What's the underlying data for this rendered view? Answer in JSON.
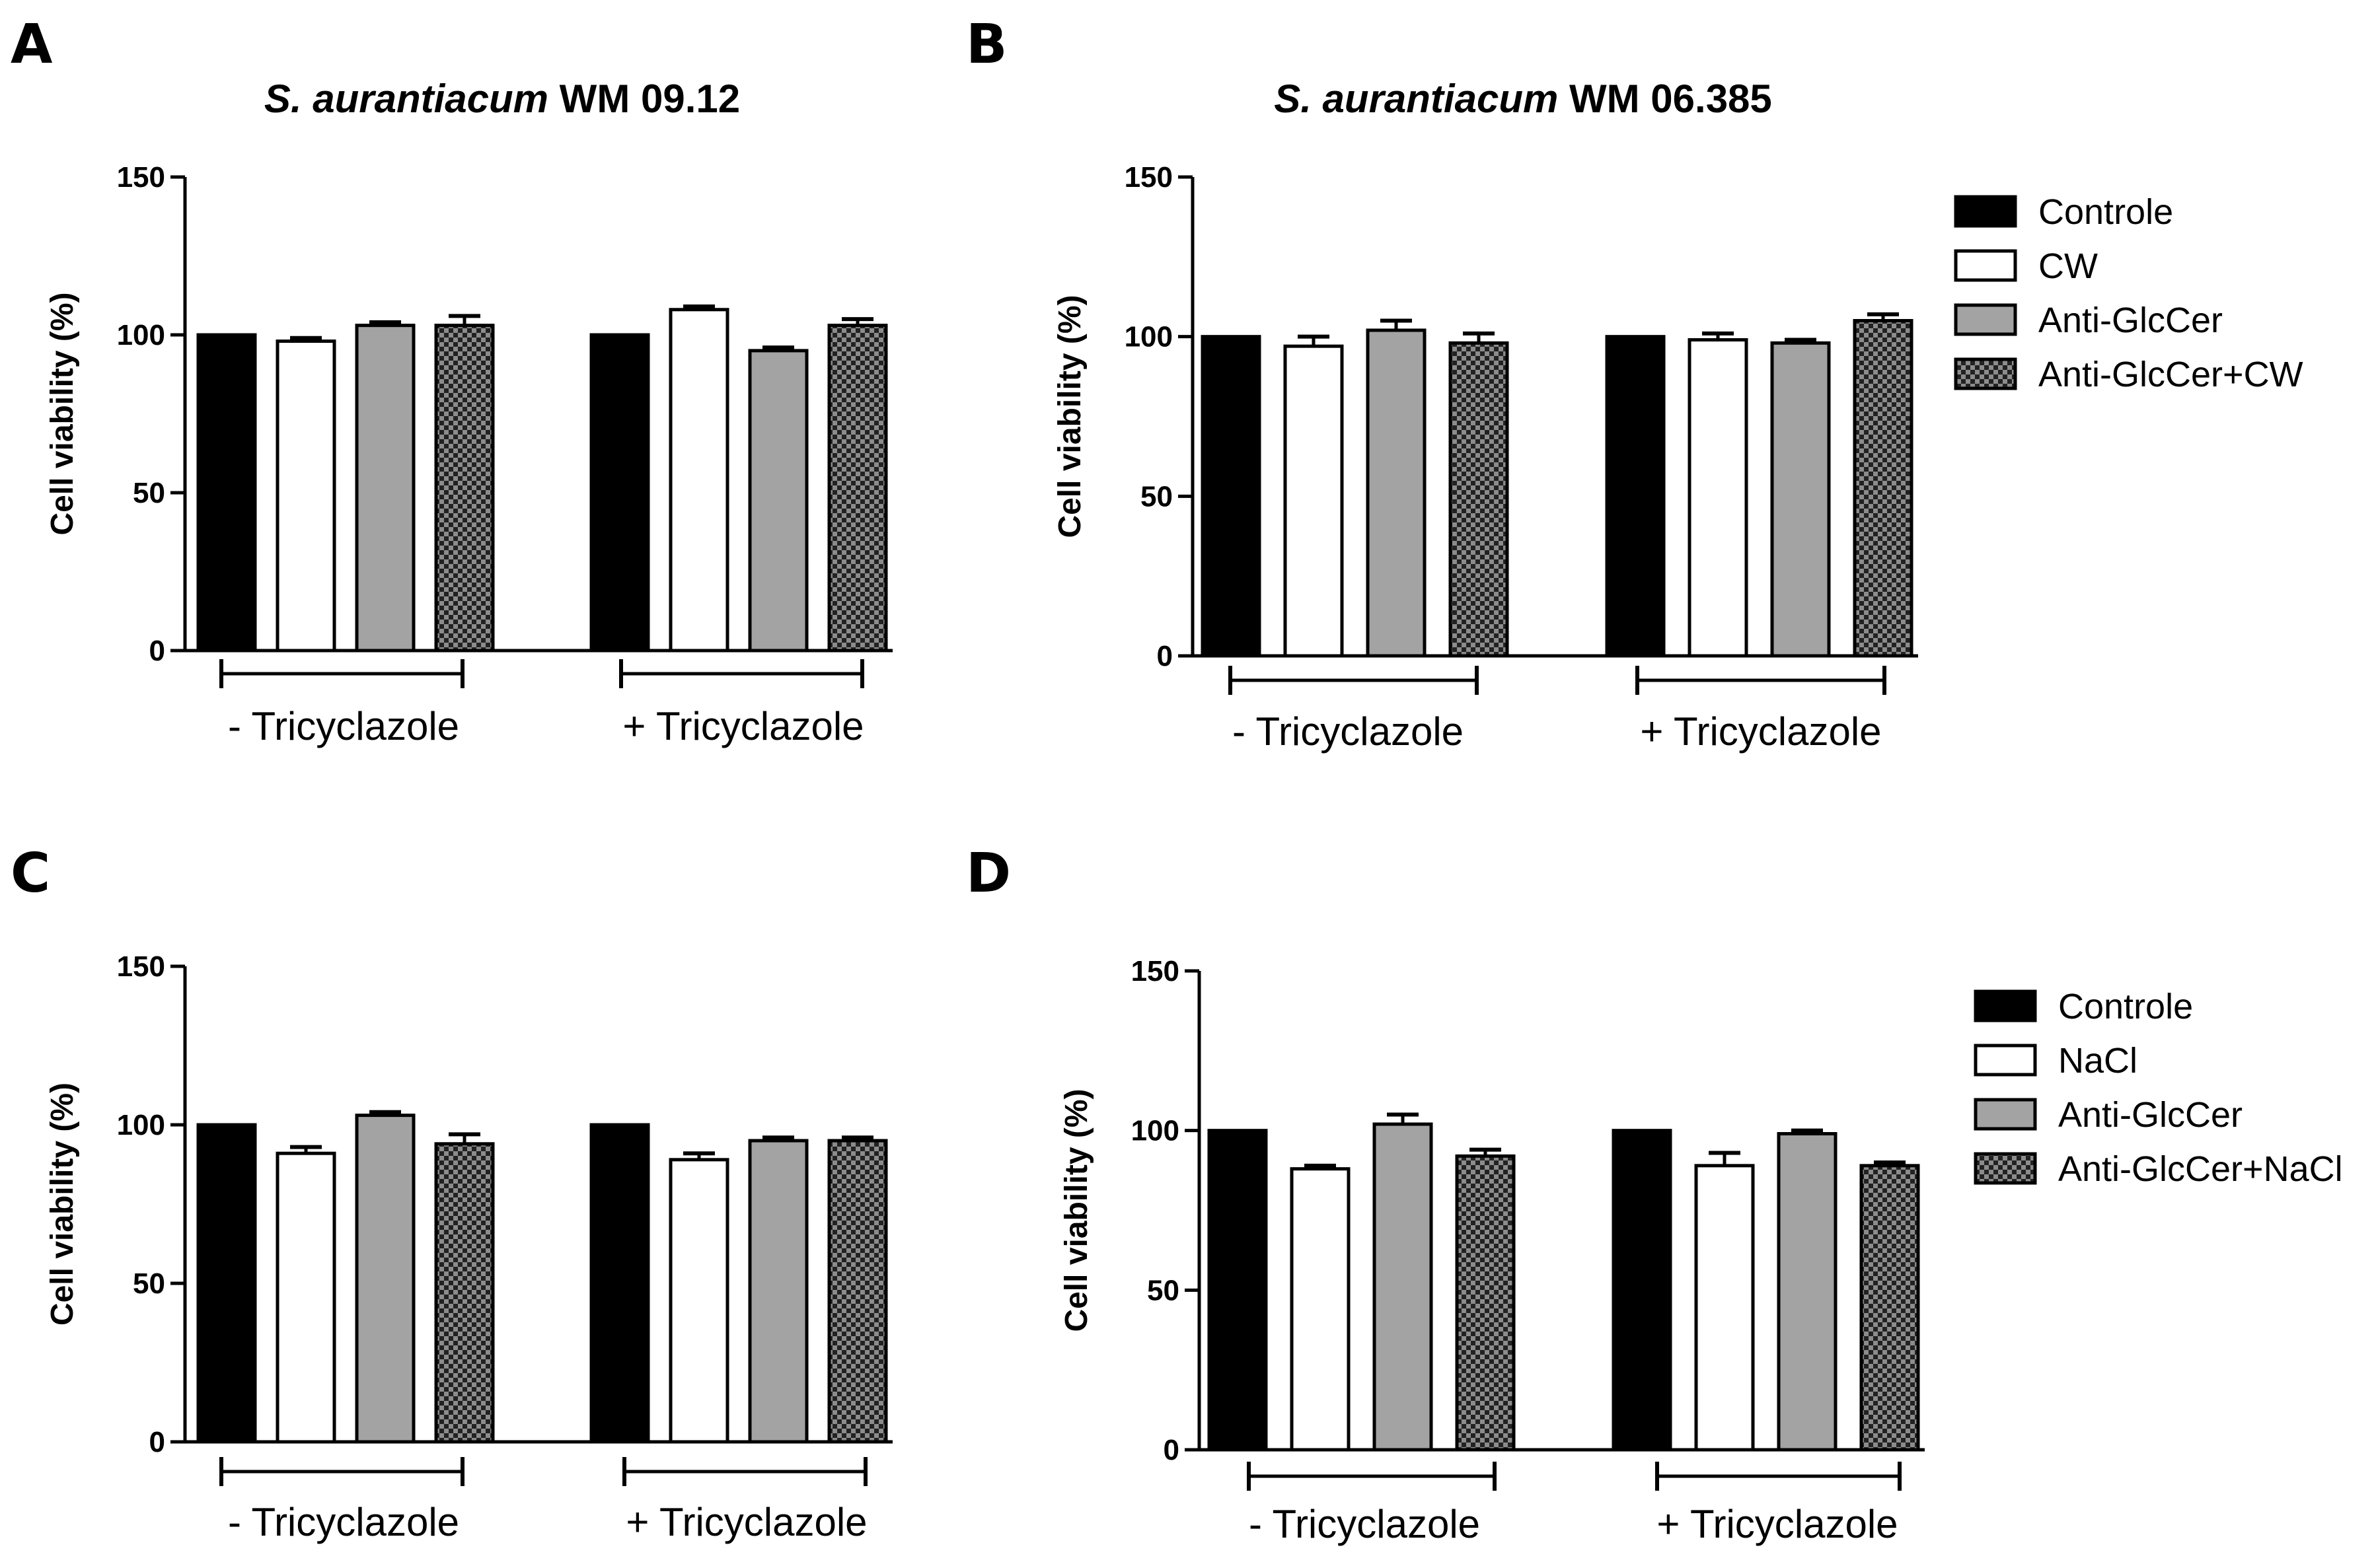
{
  "colors": {
    "Controle": "#000000",
    "CW": "#ffffff",
    "NaCl": "#ffffff",
    "Anti-GlcCer": "#a3a3a3",
    "checker_dark": "#222222",
    "checker_light": "#8c8c8c",
    "axis": "#000000"
  },
  "chart_data": [
    {
      "panel": "A",
      "type": "bar",
      "title_italic": "S. aurantiacum",
      "title_rest": " WM 09.12",
      "ylabel": "Cell viability (%)",
      "ylim": [
        0,
        150
      ],
      "yticks": [
        "0",
        "50",
        "100",
        "150"
      ],
      "groups": [
        "- Tricyclazole",
        "+ Tricyclazole"
      ],
      "series": [
        {
          "name": "Controle",
          "values": [
            100,
            100
          ],
          "errors": [
            0,
            0
          ],
          "pattern": "black"
        },
        {
          "name": "CW",
          "values": [
            98,
            108
          ],
          "errors": [
            1,
            1
          ],
          "pattern": "white"
        },
        {
          "name": "Anti-GlcCer",
          "values": [
            103,
            95
          ],
          "errors": [
            1,
            1
          ],
          "pattern": "gray"
        },
        {
          "name": "Anti-GlcCer+CW",
          "values": [
            103,
            103
          ],
          "errors": [
            3,
            2
          ],
          "pattern": "checker"
        }
      ],
      "legend": false
    },
    {
      "panel": "B",
      "type": "bar",
      "title_italic": "S. aurantiacum",
      "title_rest": " WM 06.385",
      "ylabel": "Cell viability (%)",
      "ylim": [
        0,
        150
      ],
      "yticks": [
        "0",
        "50",
        "100",
        "150"
      ],
      "groups": [
        "- Tricyclazole",
        "+ Tricyclazole"
      ],
      "series": [
        {
          "name": "Controle",
          "values": [
            100,
            100
          ],
          "errors": [
            0,
            0
          ],
          "pattern": "black"
        },
        {
          "name": "CW",
          "values": [
            97,
            99
          ],
          "errors": [
            3,
            2
          ],
          "pattern": "white"
        },
        {
          "name": "Anti-GlcCer",
          "values": [
            102,
            98
          ],
          "errors": [
            3,
            1
          ],
          "pattern": "gray"
        },
        {
          "name": "Anti-GlcCer+CW",
          "values": [
            98,
            105
          ],
          "errors": [
            3,
            2
          ],
          "pattern": "checker"
        }
      ],
      "legend": true
    },
    {
      "panel": "C",
      "type": "bar",
      "title_italic": "",
      "title_rest": "",
      "ylabel": "Cell viability (%)",
      "ylim": [
        0,
        150
      ],
      "yticks": [
        "0",
        "50",
        "100",
        "150"
      ],
      "groups": [
        "- Tricyclazole",
        "+ Tricyclazole"
      ],
      "series": [
        {
          "name": "Controle",
          "values": [
            100,
            100
          ],
          "errors": [
            0,
            0
          ],
          "pattern": "black"
        },
        {
          "name": "NaCl",
          "values": [
            91,
            89
          ],
          "errors": [
            2,
            2
          ],
          "pattern": "white"
        },
        {
          "name": "Anti-GlcCer",
          "values": [
            103,
            95
          ],
          "errors": [
            1,
            1
          ],
          "pattern": "gray"
        },
        {
          "name": "Anti-GlcCer+NaCl",
          "values": [
            94,
            95
          ],
          "errors": [
            3,
            1
          ],
          "pattern": "checker"
        }
      ],
      "legend": false
    },
    {
      "panel": "D",
      "type": "bar",
      "title_italic": "",
      "title_rest": "",
      "ylabel": "Cell viability (%)",
      "ylim": [
        0,
        150
      ],
      "yticks": [
        "0",
        "50",
        "100",
        "150"
      ],
      "groups": [
        "- Tricyclazole",
        "+ Tricyclazole"
      ],
      "series": [
        {
          "name": "Controle",
          "values": [
            100,
            100
          ],
          "errors": [
            0,
            0
          ],
          "pattern": "black"
        },
        {
          "name": "NaCl",
          "values": [
            88,
            89
          ],
          "errors": [
            1,
            4
          ],
          "pattern": "white"
        },
        {
          "name": "Anti-GlcCer",
          "values": [
            102,
            99
          ],
          "errors": [
            3,
            1
          ],
          "pattern": "gray"
        },
        {
          "name": "Anti-GlcCer+NaCl",
          "values": [
            92,
            89
          ],
          "errors": [
            2,
            1
          ],
          "pattern": "checker"
        }
      ],
      "legend": true
    }
  ]
}
